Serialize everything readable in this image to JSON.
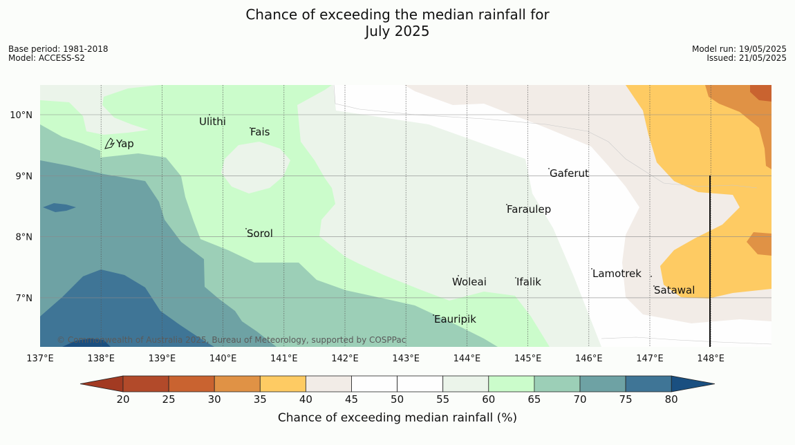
{
  "title_line1": "Chance of exceeding the median rainfall for",
  "title_line2": "July 2025",
  "base_period": "Base period: 1981-2018",
  "model": "Model: ACCESS-S2",
  "model_run": "Model run: 19/05/2025",
  "issued": "Issued: 21/05/2025",
  "copyright": "© Commonwealth of Australia 2025, Bureau of Meteorology, supported by COSPPac",
  "map": {
    "lon_labels": [
      "137°E",
      "138°E",
      "139°E",
      "140°E",
      "141°E",
      "142°E",
      "143°E",
      "144°E",
      "145°E",
      "146°E",
      "147°E",
      "148°E"
    ],
    "lat_labels": [
      "10°N",
      "9°N",
      "8°N",
      "7°N"
    ],
    "places": [
      {
        "name": "Yap"
      },
      {
        "name": "Ulithi"
      },
      {
        "name": "Fais"
      },
      {
        "name": "Gaferut"
      },
      {
        "name": "Faraulep"
      },
      {
        "name": "Sorol"
      },
      {
        "name": "Woleai"
      },
      {
        "name": "Ifalik"
      },
      {
        "name": "Lamotrek"
      },
      {
        "name": "Satawal"
      },
      {
        "name": "Eauripik"
      }
    ]
  },
  "colorbar": {
    "label": "Chance of exceeding median rainfall (%)",
    "ticks": [
      "20",
      "25",
      "30",
      "35",
      "40",
      "45",
      "50",
      "55",
      "60",
      "65",
      "70",
      "75",
      "80"
    ],
    "colors": {
      "below20": "#a23a22",
      "20-25": "#b24a2a",
      "25-30": "#c96330",
      "30-35": "#e09245",
      "35-40": "#fecb63",
      "40-45": "#f2ece7",
      "45-50": "#fefefe",
      "50-55": "#fefefe",
      "55-60": "#ebf4ea",
      "60-65": "#cbfccb",
      "65-70": "#9ccfb7",
      "70-75": "#6ea2a4",
      "75-80": "#3f7596",
      "above80": "#1a4f80"
    }
  }
}
